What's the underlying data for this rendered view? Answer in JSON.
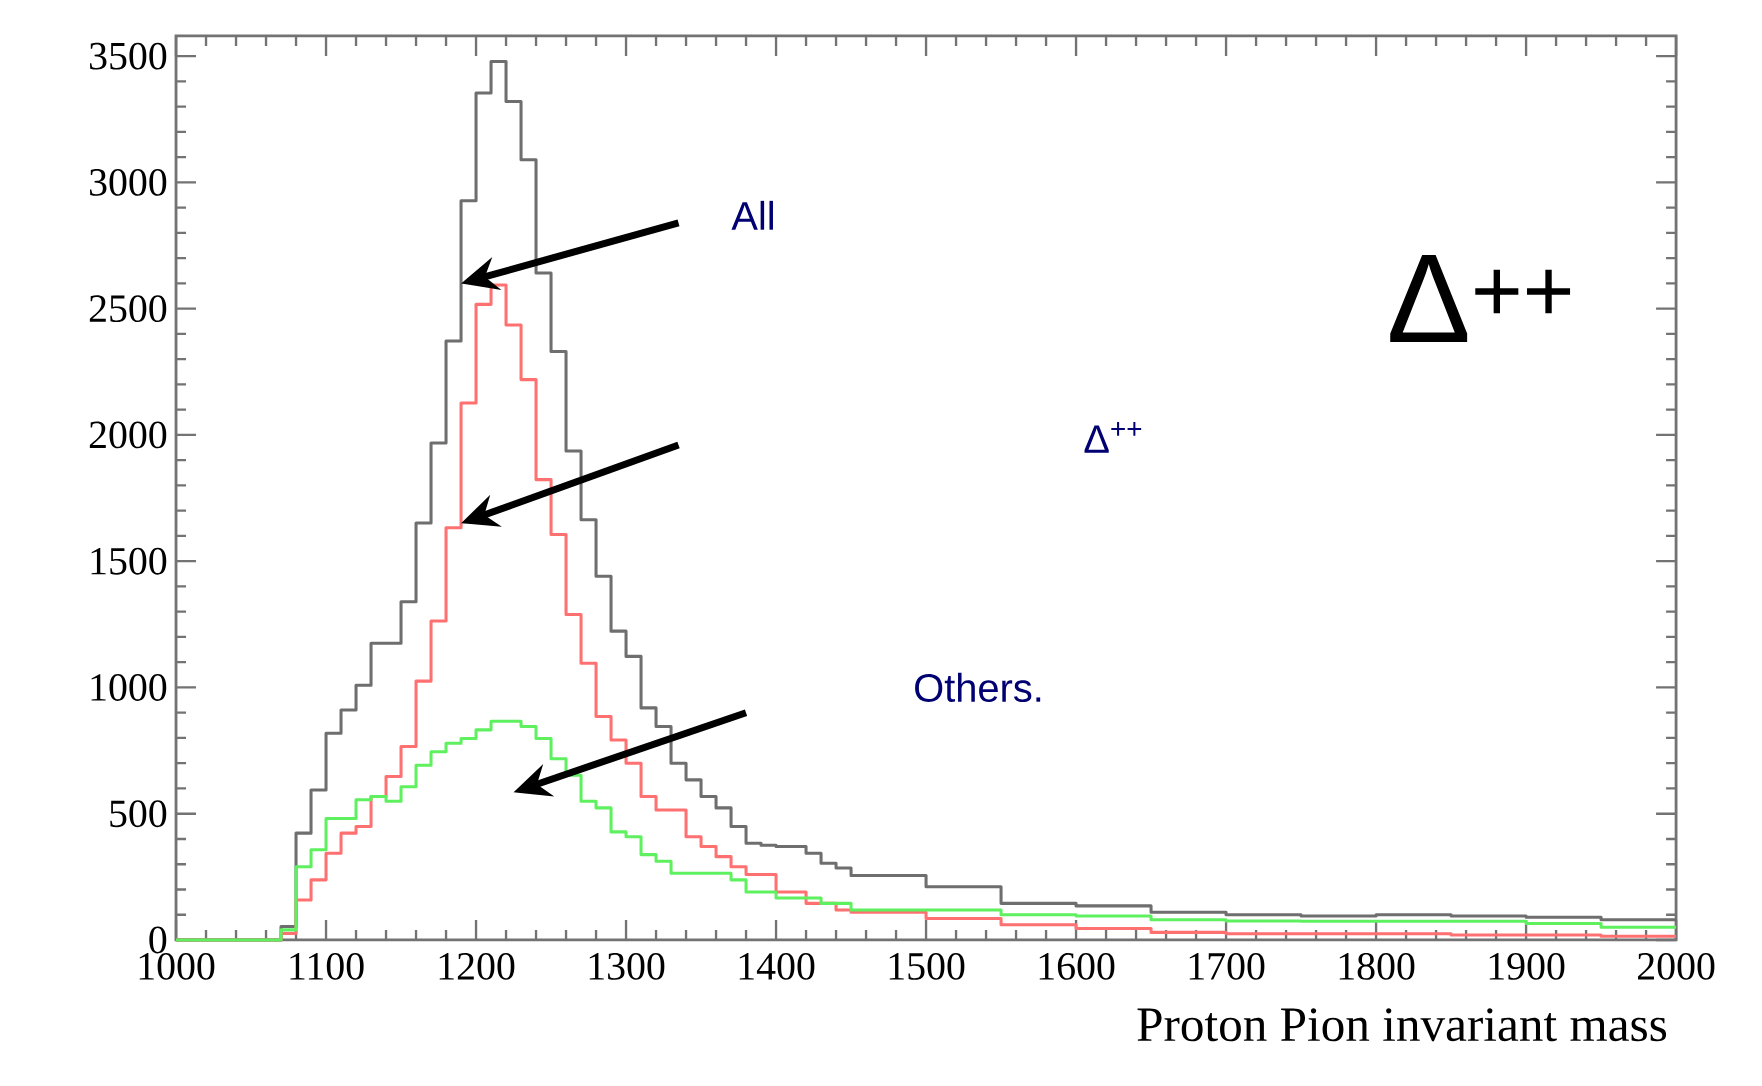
{
  "chart_data": {
    "type": "histogram",
    "xlabel": "Proton Pion invariant mass",
    "bins": [
      1000,
      1070,
      1080,
      1090,
      1100,
      1110,
      1120,
      1130,
      1140,
      1150,
      1160,
      1170,
      1180,
      1190,
      1200,
      1210,
      1220,
      1230,
      1240,
      1250,
      1260,
      1270,
      1280,
      1290,
      1300,
      1310,
      1320,
      1330,
      1340,
      1350,
      1360,
      1370,
      1380,
      1390,
      1400,
      1410,
      1420,
      1430,
      1440,
      1450,
      1500,
      1550,
      1600,
      1650,
      1700,
      1750,
      1800,
      1850,
      1900,
      1950,
      2000
    ],
    "series": [
      {
        "color": "#6e6e6e",
        "values": [
          0,
          53,
          423,
          594,
          819,
          911,
          1009,
          1175,
          1175,
          1339,
          1651,
          1968,
          2372,
          2927,
          3354,
          3479,
          3320,
          3090,
          2641,
          2330,
          1936,
          1664,
          1440,
          1223,
          1123,
          919,
          845,
          700,
          634,
          568,
          523,
          449,
          383,
          375,
          370,
          370,
          343,
          304,
          285,
          255,
          211,
          145,
          135,
          110,
          100,
          95,
          100,
          95,
          90,
          80
        ]
      },
      {
        "color": "#ff7070",
        "values": [
          0,
          26,
          158,
          238,
          343,
          423,
          449,
          568,
          647,
          766,
          1025,
          1263,
          1632,
          2126,
          2517,
          2594,
          2435,
          2219,
          1823,
          1606,
          1289,
          1096,
          885,
          792,
          700,
          568,
          515,
          515,
          409,
          370,
          330,
          290,
          259,
          259,
          190,
          190,
          145,
          145,
          119,
          110,
          85,
          60,
          45,
          30,
          25,
          25,
          25,
          20,
          20,
          15
        ]
      },
      {
        "color": "#5ef05e",
        "values": [
          0,
          40,
          290,
          357,
          481,
          481,
          555,
          568,
          549,
          607,
          692,
          745,
          779,
          798,
          832,
          866,
          866,
          845,
          798,
          718,
          652,
          549,
          523,
          428,
          409,
          338,
          312,
          264,
          264,
          264,
          264,
          238,
          190,
          190,
          166,
          166,
          166,
          145,
          145,
          119,
          119,
          100,
          95,
          80,
          75,
          74,
          74,
          74,
          65,
          50
        ]
      }
    ],
    "annotations": [
      "All",
      "Δ$^{++}$",
      "Others.",
      "Δ$^{++}$"
    ],
    "xlim": [
      1000,
      2000
    ],
    "ylim": [
      0,
      3580
    ],
    "xticks": [
      1000,
      1100,
      1200,
      1300,
      1400,
      1500,
      1600,
      1700,
      1800,
      1900,
      2000
    ],
    "yticks": [
      0,
      500,
      1000,
      1500,
      2000,
      2500,
      3000,
      3500
    ]
  }
}
